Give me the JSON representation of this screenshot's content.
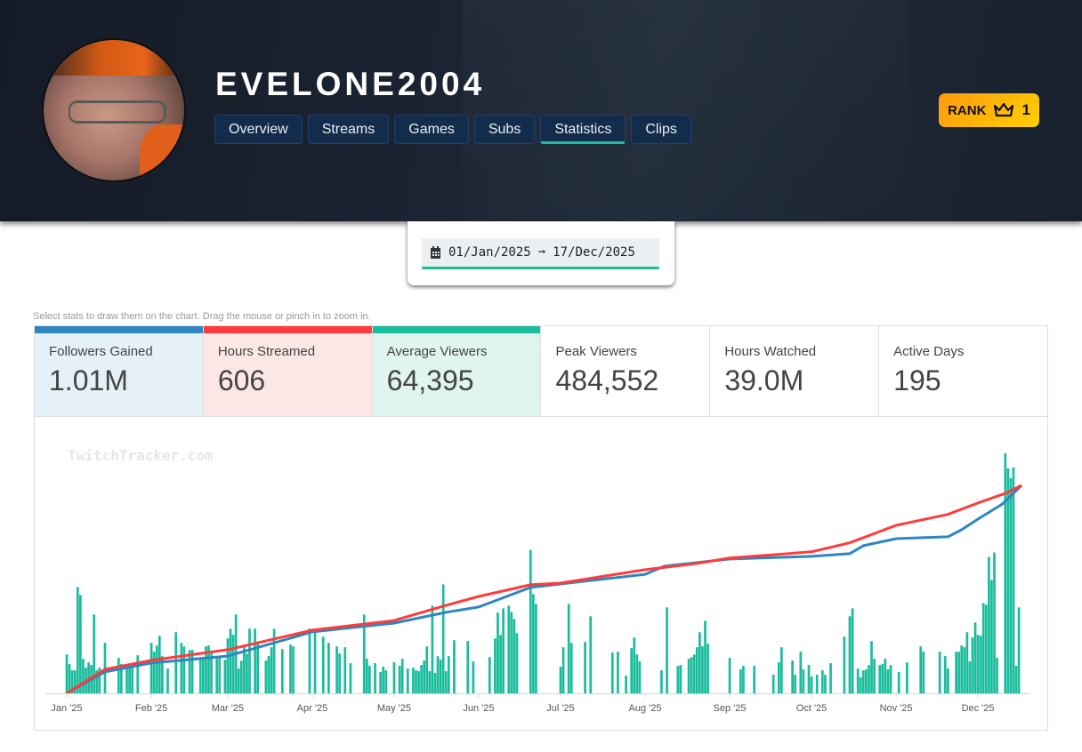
{
  "profile": {
    "name": "EVELONE2004",
    "rank_label": "RANK",
    "rank_value": "1",
    "rank_icon": "crown-icon"
  },
  "tabs": [
    {
      "label": "Overview"
    },
    {
      "label": "Streams"
    },
    {
      "label": "Games"
    },
    {
      "label": "Subs"
    },
    {
      "label": "Statistics",
      "active": true
    },
    {
      "label": "Clips"
    }
  ],
  "date_range": {
    "icon": "calendar-icon",
    "start": "01/Jan/2025",
    "arrow": "➞",
    "end": "17/Dec/2025"
  },
  "hint": "Select stats to draw them on the chart. Drag the mouse or pinch in to zoom in.",
  "stats": [
    {
      "label": "Followers Gained",
      "value": "1.01M",
      "color": "#2e86c1",
      "bg": "#e6f0f7",
      "selected": true
    },
    {
      "label": "Hours Streamed",
      "value": "606",
      "color": "#ff3b3b",
      "bg": "#fde6e6",
      "selected": true
    },
    {
      "label": "Average Viewers",
      "value": "64,395",
      "color": "#1abc9c",
      "bg": "#e0f5ef",
      "selected": true
    },
    {
      "label": "Peak Viewers",
      "value": "484,552",
      "selected": false
    },
    {
      "label": "Hours Watched",
      "value": "39.0M",
      "selected": false
    },
    {
      "label": "Active Days",
      "value": "195",
      "selected": false
    }
  ],
  "chart_data": {
    "type": "bar+line",
    "watermark": "TwitchTracker.com",
    "x_ticks": [
      "Jan '25",
      "Feb '25",
      "Mar '25",
      "Apr '25",
      "May '25",
      "Jun '25",
      "Jul '25",
      "Aug '25",
      "Sep '25",
      "Oct '25",
      "Nov '25",
      "Dec '25"
    ],
    "xlim": [
      "2025-01-01",
      "2025-12-17"
    ],
    "grid": false,
    "bars": {
      "stat": "Average Viewers",
      "color": "#1abc9c",
      "ylim": [
        0,
        280
      ],
      "points": [
        [
          "01-01",
          44
        ],
        [
          "01-02",
          33
        ],
        [
          "01-03",
          26
        ],
        [
          "01-04",
          26
        ],
        [
          "01-05",
          120
        ],
        [
          "01-06",
          111
        ],
        [
          "01-07",
          39
        ],
        [
          "01-08",
          29
        ],
        [
          "01-09",
          35
        ],
        [
          "01-10",
          32
        ],
        [
          "01-11",
          89
        ],
        [
          "01-12",
          26
        ],
        [
          "01-13",
          29
        ],
        [
          "01-15",
          57
        ],
        [
          "01-20",
          40
        ],
        [
          "01-21",
          33
        ],
        [
          "01-23",
          33
        ],
        [
          "01-24",
          33
        ],
        [
          "01-25",
          33
        ],
        [
          "01-27",
          43
        ],
        [
          "02-01",
          57
        ],
        [
          "02-02",
          47
        ],
        [
          "02-03",
          54
        ],
        [
          "02-04",
          65
        ],
        [
          "02-05",
          42
        ],
        [
          "02-07",
          28
        ],
        [
          "02-10",
          69
        ],
        [
          "02-12",
          57
        ],
        [
          "02-13",
          53
        ],
        [
          "02-15",
          49
        ],
        [
          "02-16",
          49
        ],
        [
          "02-19",
          39
        ],
        [
          "02-20",
          39
        ],
        [
          "02-21",
          53
        ],
        [
          "02-22",
          54
        ],
        [
          "02-23",
          46
        ],
        [
          "02-25",
          42
        ],
        [
          "02-26",
          42
        ],
        [
          "02-28",
          38
        ],
        [
          "03-01",
          62
        ],
        [
          "03-02",
          73
        ],
        [
          "03-03",
          66
        ],
        [
          "03-04",
          89
        ],
        [
          "03-05",
          28
        ],
        [
          "03-06",
          37
        ],
        [
          "03-07",
          53
        ],
        [
          "03-08",
          45
        ],
        [
          "03-09",
          73
        ],
        [
          "03-11",
          73
        ],
        [
          "03-12",
          57
        ],
        [
          "03-15",
          37
        ],
        [
          "03-16",
          42
        ],
        [
          "03-17",
          52
        ],
        [
          "03-18",
          73
        ],
        [
          "03-21",
          50
        ],
        [
          "03-24",
          55
        ],
        [
          "03-25",
          53
        ],
        [
          "03-31",
          73
        ],
        [
          "04-02",
          69
        ],
        [
          "04-05",
          64
        ],
        [
          "04-07",
          57
        ],
        [
          "04-10",
          53
        ],
        [
          "04-11",
          45
        ],
        [
          "04-13",
          52
        ],
        [
          "04-15",
          34
        ],
        [
          "04-20",
          89
        ],
        [
          "04-21",
          39
        ],
        [
          "04-22",
          31
        ],
        [
          "04-24",
          34
        ],
        [
          "04-26",
          24
        ],
        [
          "04-27",
          30
        ],
        [
          "04-28",
          26
        ],
        [
          "05-01",
          35
        ],
        [
          "05-03",
          31
        ],
        [
          "05-04",
          39
        ],
        [
          "05-06",
          28
        ],
        [
          "05-08",
          29
        ],
        [
          "05-09",
          26
        ],
        [
          "05-10",
          25
        ],
        [
          "05-11",
          32
        ],
        [
          "05-12",
          37
        ],
        [
          "05-13",
          53
        ],
        [
          "05-14",
          25
        ],
        [
          "05-15",
          99
        ],
        [
          "05-16",
          23
        ],
        [
          "05-17",
          42
        ],
        [
          "05-18",
          38
        ],
        [
          "05-19",
          123
        ],
        [
          "05-20",
          25
        ],
        [
          "05-21",
          42
        ],
        [
          "05-23",
          60
        ],
        [
          "05-28",
          59
        ],
        [
          "05-30",
          36
        ],
        [
          "06-05",
          41
        ],
        [
          "06-07",
          62
        ],
        [
          "06-08",
          91
        ],
        [
          "06-09",
          66
        ],
        [
          "06-10",
          96
        ],
        [
          "06-12",
          99
        ],
        [
          "06-13",
          92
        ],
        [
          "06-14",
          84
        ],
        [
          "06-15",
          68
        ],
        [
          "06-20",
          162
        ],
        [
          "06-21",
          112
        ],
        [
          "06-22",
          101
        ],
        [
          "07-01",
          30
        ],
        [
          "07-02",
          52
        ],
        [
          "07-04",
          101
        ],
        [
          "07-05",
          57
        ],
        [
          "07-10",
          58
        ],
        [
          "07-12",
          87
        ],
        [
          "07-20",
          46
        ],
        [
          "07-22",
          47
        ],
        [
          "07-25",
          20
        ],
        [
          "07-27",
          51
        ],
        [
          "07-28",
          63
        ],
        [
          "07-29",
          44
        ],
        [
          "07-30",
          36
        ],
        [
          "08-07",
          26
        ],
        [
          "08-09",
          97
        ],
        [
          "08-13",
          31
        ],
        [
          "08-14",
          32
        ],
        [
          "08-17",
          39
        ],
        [
          "08-18",
          41
        ],
        [
          "08-19",
          44
        ],
        [
          "08-20",
          52
        ],
        [
          "08-21",
          69
        ],
        [
          "08-22",
          53
        ],
        [
          "08-23",
          82
        ],
        [
          "08-24",
          56
        ],
        [
          "09-01",
          40
        ],
        [
          "09-05",
          27
        ],
        [
          "09-06",
          31
        ],
        [
          "09-10",
          31
        ],
        [
          "09-17",
          21
        ],
        [
          "09-19",
          35
        ],
        [
          "09-20",
          52
        ],
        [
          "09-24",
          37
        ],
        [
          "09-25",
          21
        ],
        [
          "09-27",
          47
        ],
        [
          "09-28",
          27
        ],
        [
          "09-30",
          32
        ],
        [
          "10-01",
          19
        ],
        [
          "10-03",
          21
        ],
        [
          "10-05",
          26
        ],
        [
          "10-06",
          21
        ],
        [
          "10-08",
          34
        ],
        [
          "10-13",
          64
        ],
        [
          "10-15",
          87
        ],
        [
          "10-16",
          96
        ],
        [
          "10-18",
          28
        ],
        [
          "10-19",
          18
        ],
        [
          "10-20",
          26
        ],
        [
          "10-21",
          27
        ],
        [
          "10-22",
          32
        ],
        [
          "10-23",
          59
        ],
        [
          "10-24",
          39
        ],
        [
          "10-26",
          32
        ],
        [
          "10-27",
          33
        ],
        [
          "10-28",
          39
        ],
        [
          "10-29",
          27
        ],
        [
          "10-30",
          32
        ],
        [
          "11-02",
          24
        ],
        [
          "11-05",
          35
        ],
        [
          "11-10",
          53
        ],
        [
          "11-11",
          47
        ],
        [
          "11-17",
          47
        ],
        [
          "11-19",
          42
        ],
        [
          "11-20",
          28
        ],
        [
          "11-23",
          47
        ],
        [
          "11-24",
          47
        ],
        [
          "11-25",
          54
        ],
        [
          "11-26",
          52
        ],
        [
          "11-27",
          69
        ],
        [
          "11-28",
          36
        ],
        [
          "11-29",
          63
        ],
        [
          "11-30",
          80
        ],
        [
          "12-01",
          66
        ],
        [
          "12-02",
          65
        ],
        [
          "12-03",
          102
        ],
        [
          "12-04",
          100
        ],
        [
          "12-05",
          154
        ],
        [
          "12-06",
          128
        ],
        [
          "12-07",
          159
        ],
        [
          "12-08",
          40
        ],
        [
          "12-11",
          271
        ],
        [
          "12-12",
          254
        ],
        [
          "12-13",
          243
        ],
        [
          "12-14",
          255
        ],
        [
          "12-15",
          31
        ],
        [
          "12-16",
          97
        ]
      ]
    },
    "lines": [
      {
        "stat": "Hours Streamed",
        "color": "#ff3b3b",
        "ylim": [
          0,
          722
        ],
        "points": [
          [
            "01-01",
            0
          ],
          [
            "01-15",
            70
          ],
          [
            "02-01",
            96
          ],
          [
            "03-01",
            127
          ],
          [
            "04-01",
            184
          ],
          [
            "05-01",
            212
          ],
          [
            "05-20",
            256
          ],
          [
            "06-01",
            282
          ],
          [
            "06-20",
            316
          ],
          [
            "07-01",
            321
          ],
          [
            "08-01",
            360
          ],
          [
            "08-20",
            378
          ],
          [
            "09-01",
            394
          ],
          [
            "10-01",
            412
          ],
          [
            "10-15",
            438
          ],
          [
            "11-01",
            489
          ],
          [
            "11-20",
            521
          ],
          [
            "12-01",
            554
          ],
          [
            "12-12",
            585
          ],
          [
            "12-17",
            606
          ]
        ]
      },
      {
        "stat": "Followers Gained",
        "color": "#2e86c1",
        "ylim": [
          0,
          1.204
        ],
        "points": [
          [
            "01-01",
            0
          ],
          [
            "01-15",
            0.104
          ],
          [
            "02-01",
            0.147
          ],
          [
            "03-01",
            0.181
          ],
          [
            "04-01",
            0.298
          ],
          [
            "05-01",
            0.341
          ],
          [
            "05-20",
            0.393
          ],
          [
            "06-01",
            0.419
          ],
          [
            "06-20",
            0.514
          ],
          [
            "07-01",
            0.531
          ],
          [
            "08-01",
            0.578
          ],
          [
            "08-08",
            0.617
          ],
          [
            "09-01",
            0.652
          ],
          [
            "10-01",
            0.665
          ],
          [
            "10-15",
            0.678
          ],
          [
            "10-20",
            0.717
          ],
          [
            "11-01",
            0.751
          ],
          [
            "11-20",
            0.76
          ],
          [
            "11-25",
            0.794
          ],
          [
            "12-01",
            0.846
          ],
          [
            "12-10",
            0.919
          ],
          [
            "12-17",
            1.01
          ]
        ]
      }
    ]
  }
}
